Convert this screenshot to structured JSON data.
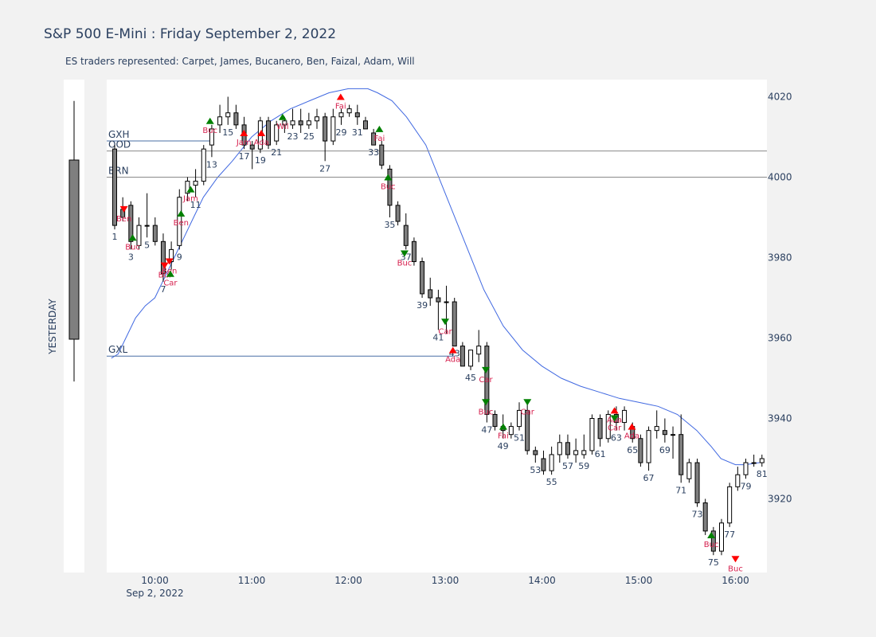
{
  "title": "S&P 500 E-Mini : Friday September 2, 2022",
  "subtitle": "ES traders represented: Carpet, James, Bucanero, Ben, Faizal, Adam, Will",
  "chart_data": {
    "type": "candlestick",
    "y_range": [
      3902,
      4024
    ],
    "y_ticks": [
      3920,
      3940,
      3960,
      3980,
      4000,
      4020
    ],
    "x_range_hours": [
      9.55,
      16.35
    ],
    "x_ticks": [
      {
        "h": 10,
        "label": "10:00",
        "sub": "Sep 2, 2022"
      },
      {
        "h": 11,
        "label": "11:00"
      },
      {
        "h": 12,
        "label": "12:00"
      },
      {
        "h": 13,
        "label": "13:00"
      },
      {
        "h": 14,
        "label": "14:00"
      },
      {
        "h": 15,
        "label": "15:00"
      },
      {
        "h": 16,
        "label": "16:00"
      }
    ],
    "colors": {
      "up": "#ffffff",
      "down": "#7f7f7f",
      "ema": "#4169e1",
      "buy": "#008000",
      "sell": "#ff0000",
      "label": "#d6204e",
      "level": "#4a6fa5"
    },
    "yesterday": {
      "label": "YESTERDAY",
      "open": 3960,
      "close": 4004,
      "high": 4021,
      "low": 3953
    },
    "levels": [
      {
        "name": "GXH",
        "value": 4009,
        "end_h": 10.6
      },
      {
        "name": "OOD",
        "value": 4006.5,
        "end_h": null
      },
      {
        "name": "BRN",
        "value": 4000,
        "end_h": null
      },
      {
        "name": "GXL",
        "value": 3955.5,
        "end_h": 13.1
      }
    ],
    "candles": [
      {
        "n": 1,
        "o": 4007,
        "h": 4008,
        "l": 3987,
        "c": 3988
      },
      {
        "n": 2,
        "o": 3992,
        "h": 3995,
        "l": 3989,
        "c": 3990
      },
      {
        "n": 3,
        "o": 3993,
        "h": 3994,
        "l": 3982,
        "c": 3984
      },
      {
        "n": 4,
        "o": 3983,
        "h": 3990,
        "l": 3982,
        "c": 3988
      },
      {
        "n": 5,
        "o": 3988,
        "h": 3996,
        "l": 3985,
        "c": 3988
      },
      {
        "n": 6,
        "o": 3988,
        "h": 3990,
        "l": 3983,
        "c": 3984
      },
      {
        "n": 7,
        "o": 3984,
        "h": 3986,
        "l": 3974,
        "c": 3976
      },
      {
        "n": 8,
        "o": 3979,
        "h": 3984,
        "l": 3977,
        "c": 3982
      },
      {
        "n": 9,
        "o": 3983,
        "h": 3997,
        "l": 3982,
        "c": 3995
      },
      {
        "n": 10,
        "o": 3996,
        "h": 4000,
        "l": 3994,
        "c": 3999
      },
      {
        "n": 11,
        "o": 3998,
        "h": 4002,
        "l": 3995,
        "c": 3999
      },
      {
        "n": 12,
        "o": 3999,
        "h": 4008,
        "l": 3998,
        "c": 4007
      },
      {
        "n": 13,
        "o": 4008,
        "h": 4013,
        "l": 4005,
        "c": 4012
      },
      {
        "n": 14,
        "o": 4013,
        "h": 4018,
        "l": 4011,
        "c": 4015
      },
      {
        "n": 15,
        "o": 4015,
        "h": 4020,
        "l": 4013,
        "c": 4016
      },
      {
        "n": 16,
        "o": 4016,
        "h": 4018,
        "l": 4012,
        "c": 4013
      },
      {
        "n": 17,
        "o": 4013,
        "h": 4015,
        "l": 4007,
        "c": 4008
      },
      {
        "n": 18,
        "o": 4008,
        "h": 4009,
        "l": 4002,
        "c": 4007
      },
      {
        "n": 19,
        "o": 4007,
        "h": 4015,
        "l": 4006,
        "c": 4014
      },
      {
        "n": 20,
        "o": 4014,
        "h": 4015,
        "l": 4007,
        "c": 4008
      },
      {
        "n": 21,
        "o": 4009,
        "h": 4014,
        "l": 4008,
        "c": 4013
      },
      {
        "n": 22,
        "o": 4013,
        "h": 4015,
        "l": 4011,
        "c": 4014
      },
      {
        "n": 23,
        "o": 4013,
        "h": 4017,
        "l": 4012,
        "c": 4014
      },
      {
        "n": 24,
        "o": 4014,
        "h": 4017,
        "l": 4011,
        "c": 4013
      },
      {
        "n": 25,
        "o": 4013,
        "h": 4016,
        "l": 4012,
        "c": 4014
      },
      {
        "n": 26,
        "o": 4014,
        "h": 4017,
        "l": 4012,
        "c": 4015
      },
      {
        "n": 27,
        "o": 4015,
        "h": 4016,
        "l": 4004,
        "c": 4009
      },
      {
        "n": 28,
        "o": 4009,
        "h": 4017,
        "l": 4008,
        "c": 4015
      },
      {
        "n": 29,
        "o": 4015,
        "h": 4017,
        "l": 4013,
        "c": 4016
      },
      {
        "n": 30,
        "o": 4016,
        "h": 4018,
        "l": 4015,
        "c": 4017
      },
      {
        "n": 31,
        "o": 4016,
        "h": 4018,
        "l": 4013,
        "c": 4015
      },
      {
        "n": 32,
        "o": 4014,
        "h": 4015,
        "l": 4012,
        "c": 4012
      },
      {
        "n": 33,
        "o": 4011,
        "h": 4012,
        "l": 4008,
        "c": 4008
      },
      {
        "n": 34,
        "o": 4008,
        "h": 4009,
        "l": 4002,
        "c": 4003
      },
      {
        "n": 35,
        "o": 4002,
        "h": 4003,
        "l": 3990,
        "c": 3993
      },
      {
        "n": 36,
        "o": 3993,
        "h": 3994,
        "l": 3988,
        "c": 3989
      },
      {
        "n": 37,
        "o": 3988,
        "h": 3991,
        "l": 3982,
        "c": 3983
      },
      {
        "n": 38,
        "o": 3984,
        "h": 3985,
        "l": 3978,
        "c": 3979
      },
      {
        "n": 39,
        "o": 3979,
        "h": 3980,
        "l": 3970,
        "c": 3971
      },
      {
        "n": 40,
        "o": 3972,
        "h": 3975,
        "l": 3968,
        "c": 3970
      },
      {
        "n": 41,
        "o": 3970,
        "h": 3972,
        "l": 3962,
        "c": 3969
      },
      {
        "n": 42,
        "o": 3969,
        "h": 3973,
        "l": 3961,
        "c": 3969
      },
      {
        "n": 43,
        "o": 3969,
        "h": 3970,
        "l": 3958,
        "c": 3958
      },
      {
        "n": 44,
        "o": 3958,
        "h": 3959,
        "l": 3953,
        "c": 3953
      },
      {
        "n": 45,
        "o": 3953,
        "h": 3957,
        "l": 3952,
        "c": 3957
      },
      {
        "n": 46,
        "o": 3956,
        "h": 3962,
        "l": 3954,
        "c": 3958
      },
      {
        "n": 47,
        "o": 3958,
        "h": 3959,
        "l": 3939,
        "c": 3941
      },
      {
        "n": 48,
        "o": 3941,
        "h": 3942,
        "l": 3937,
        "c": 3938
      },
      {
        "n": 49,
        "o": 3938,
        "h": 3941,
        "l": 3935,
        "c": 3937
      },
      {
        "n": 50,
        "o": 3936,
        "h": 3939,
        "l": 3935,
        "c": 3938
      },
      {
        "n": 51,
        "o": 3938,
        "h": 3944,
        "l": 3937,
        "c": 3942
      },
      {
        "n": 52,
        "o": 3942,
        "h": 3944,
        "l": 3931,
        "c": 3932
      },
      {
        "n": 53,
        "o": 3932,
        "h": 3933,
        "l": 3929,
        "c": 3931
      },
      {
        "n": 54,
        "o": 3930,
        "h": 3932,
        "l": 3926,
        "c": 3927
      },
      {
        "n": 55,
        "o": 3927,
        "h": 3933,
        "l": 3926,
        "c": 3931
      },
      {
        "n": 56,
        "o": 3931,
        "h": 3936,
        "l": 3929,
        "c": 3934
      },
      {
        "n": 57,
        "o": 3934,
        "h": 3936,
        "l": 3930,
        "c": 3931
      },
      {
        "n": 58,
        "o": 3931,
        "h": 3935,
        "l": 3929,
        "c": 3932
      },
      {
        "n": 59,
        "o": 3931,
        "h": 3936,
        "l": 3930,
        "c": 3932
      },
      {
        "n": 60,
        "o": 3932,
        "h": 3941,
        "l": 3931,
        "c": 3940
      },
      {
        "n": 61,
        "o": 3940,
        "h": 3941,
        "l": 3933,
        "c": 3935
      },
      {
        "n": 62,
        "o": 3935,
        "h": 3942,
        "l": 3934,
        "c": 3941
      },
      {
        "n": 63,
        "o": 3941,
        "h": 3943,
        "l": 3937,
        "c": 3939
      },
      {
        "n": 64,
        "o": 3939,
        "h": 3943,
        "l": 3937,
        "c": 3942
      },
      {
        "n": 65,
        "o": 3938,
        "h": 3939,
        "l": 3934,
        "c": 3935
      },
      {
        "n": 66,
        "o": 3935,
        "h": 3936,
        "l": 3928,
        "c": 3929
      },
      {
        "n": 67,
        "o": 3929,
        "h": 3938,
        "l": 3927,
        "c": 3937
      },
      {
        "n": 68,
        "o": 3937,
        "h": 3942,
        "l": 3935,
        "c": 3938
      },
      {
        "n": 69,
        "o": 3937,
        "h": 3940,
        "l": 3934,
        "c": 3936
      },
      {
        "n": 70,
        "o": 3936,
        "h": 3938,
        "l": 3930,
        "c": 3936
      },
      {
        "n": 71,
        "o": 3936,
        "h": 3941,
        "l": 3924,
        "c": 3926
      },
      {
        "n": 72,
        "o": 3925,
        "h": 3930,
        "l": 3924,
        "c": 3929
      },
      {
        "n": 73,
        "o": 3929,
        "h": 3930,
        "l": 3918,
        "c": 3919
      },
      {
        "n": 74,
        "o": 3919,
        "h": 3920,
        "l": 3911,
        "c": 3912
      },
      {
        "n": 75,
        "o": 3912,
        "h": 3913,
        "l": 3906,
        "c": 3907
      },
      {
        "n": 76,
        "o": 3907,
        "h": 3915,
        "l": 3906,
        "c": 3914
      },
      {
        "n": 77,
        "o": 3914,
        "h": 3924,
        "l": 3913,
        "c": 3923
      },
      {
        "n": 78,
        "o": 3923,
        "h": 3928,
        "l": 3922,
        "c": 3926
      },
      {
        "n": 79,
        "o": 3926,
        "h": 3930,
        "l": 3925,
        "c": 3929
      },
      {
        "n": 80,
        "o": 3929,
        "h": 3931,
        "l": 3928,
        "c": 3929
      },
      {
        "n": 81,
        "o": 3929,
        "h": 3931,
        "l": 3928,
        "c": 3930
      }
    ],
    "ema": [
      [
        9.55,
        3955
      ],
      [
        9.62,
        3956
      ],
      [
        9.7,
        3960
      ],
      [
        9.8,
        3965
      ],
      [
        9.9,
        3968
      ],
      [
        10.0,
        3970
      ],
      [
        10.1,
        3975
      ],
      [
        10.2,
        3980
      ],
      [
        10.3,
        3985
      ],
      [
        10.4,
        3990
      ],
      [
        10.5,
        3995
      ],
      [
        10.65,
        4000
      ],
      [
        10.8,
        4004
      ],
      [
        11.0,
        4010
      ],
      [
        11.2,
        4014
      ],
      [
        11.4,
        4017
      ],
      [
        11.6,
        4019
      ],
      [
        11.8,
        4021
      ],
      [
        12.0,
        4022
      ],
      [
        12.2,
        4022
      ],
      [
        12.3,
        4021
      ],
      [
        12.45,
        4019
      ],
      [
        12.6,
        4015
      ],
      [
        12.8,
        4008
      ],
      [
        13.0,
        3996
      ],
      [
        13.2,
        3984
      ],
      [
        13.4,
        3972
      ],
      [
        13.6,
        3963
      ],
      [
        13.8,
        3957
      ],
      [
        14.0,
        3953
      ],
      [
        14.2,
        3950
      ],
      [
        14.4,
        3948
      ],
      [
        14.6,
        3946.5
      ],
      [
        14.8,
        3945
      ],
      [
        15.0,
        3944
      ],
      [
        15.2,
        3943
      ],
      [
        15.4,
        3941
      ],
      [
        15.6,
        3937
      ],
      [
        15.75,
        3933
      ],
      [
        15.85,
        3930
      ],
      [
        16.0,
        3928.5
      ],
      [
        16.1,
        3928.5
      ],
      [
        16.25,
        3929
      ]
    ],
    "annotations": [
      {
        "h": 9.68,
        "y": 3992,
        "label": "Ben",
        "dir": "down",
        "color": "red"
      },
      {
        "h": 9.77,
        "y": 3985,
        "label": "Buc",
        "dir": "up",
        "color": "green"
      },
      {
        "h": 10.1,
        "y": 3978,
        "label": "Bul",
        "dir": "down",
        "color": "red"
      },
      {
        "h": 10.15,
        "y": 3979,
        "label": "Ben",
        "dir": "down",
        "color": "red"
      },
      {
        "h": 10.16,
        "y": 3976,
        "label": "Car",
        "dir": "up",
        "color": "green"
      },
      {
        "h": 10.27,
        "y": 3991,
        "label": "Ben",
        "dir": "up",
        "color": "green"
      },
      {
        "h": 10.37,
        "y": 3997,
        "label": "Jam",
        "dir": "up",
        "color": "green"
      },
      {
        "h": 10.57,
        "y": 4014,
        "label": "Buc",
        "dir": "up",
        "color": "green"
      },
      {
        "h": 10.92,
        "y": 4011,
        "label": "Jam",
        "dir": "up",
        "color": "red"
      },
      {
        "h": 11.1,
        "y": 4011,
        "label": "Ada",
        "dir": "up",
        "color": "red"
      },
      {
        "h": 11.32,
        "y": 4015,
        "label": "Wil",
        "dir": "up",
        "color": "green"
      },
      {
        "h": 11.92,
        "y": 4020,
        "label": "Fai",
        "dir": "up",
        "color": "red"
      },
      {
        "h": 12.32,
        "y": 4012,
        "label": "Fai",
        "dir": "up",
        "color": "green"
      },
      {
        "h": 12.41,
        "y": 4000,
        "label": "Buc",
        "dir": "up",
        "color": "green"
      },
      {
        "h": 12.58,
        "y": 3981,
        "label": "Buc",
        "dir": "down",
        "color": "green"
      },
      {
        "h": 13.0,
        "y": 3964,
        "label": "Car",
        "dir": "down",
        "color": "green"
      },
      {
        "h": 13.08,
        "y": 3957,
        "label": "Ada",
        "dir": "up",
        "color": "red"
      },
      {
        "h": 13.42,
        "y": 3952,
        "label": "Car",
        "dir": "down",
        "color": "green"
      },
      {
        "h": 13.42,
        "y": 3944,
        "label": "Buc",
        "dir": "down",
        "color": "green"
      },
      {
        "h": 13.6,
        "y": 3938,
        "label": "Fai",
        "dir": "up",
        "color": "green"
      },
      {
        "h": 13.85,
        "y": 3944,
        "label": "Car",
        "dir": "down",
        "color": "green"
      },
      {
        "h": 14.75,
        "y": 3942,
        "label": "Ada",
        "dir": "up",
        "color": "red"
      },
      {
        "h": 14.75,
        "y": 3940,
        "label": "Car",
        "dir": "down",
        "color": "green"
      },
      {
        "h": 14.93,
        "y": 3938,
        "label": "Ada",
        "dir": "up",
        "color": "red"
      },
      {
        "h": 15.75,
        "y": 3911,
        "label": "Buc",
        "dir": "up",
        "color": "green"
      },
      {
        "h": 16.0,
        "y": 3905,
        "label": "Buc",
        "dir": "down",
        "color": "red"
      }
    ]
  }
}
